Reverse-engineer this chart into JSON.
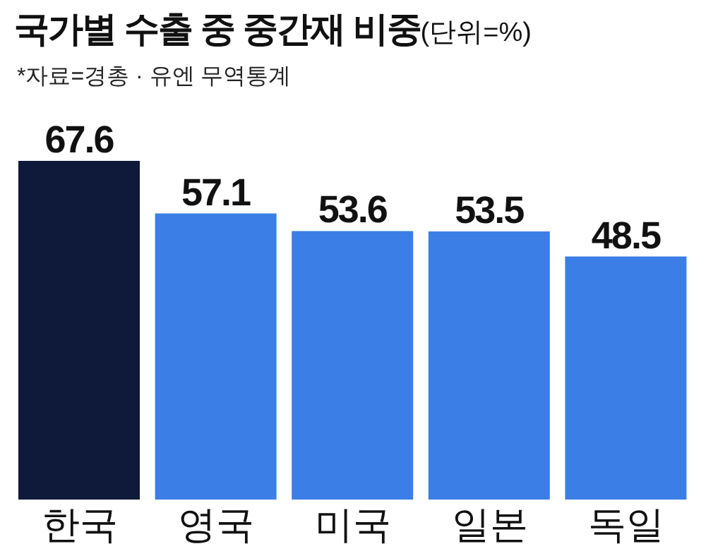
{
  "chart_data": {
    "type": "bar",
    "title": "국가별 수출 중 중간재 비중",
    "annotations": [
      "(단위=%)",
      "*자료=경총 · 유엔 무역통계"
    ],
    "categories": [
      "한국",
      "영국",
      "미국",
      "일본",
      "독일"
    ],
    "values": [
      67.6,
      57.1,
      53.6,
      53.5,
      48.5
    ],
    "colors": [
      "#0f1a3a",
      "#3b7fe6",
      "#3b7fe6",
      "#3b7fe6",
      "#3b7fe6"
    ],
    "data_labels": true,
    "grid": false,
    "legend": false
  }
}
